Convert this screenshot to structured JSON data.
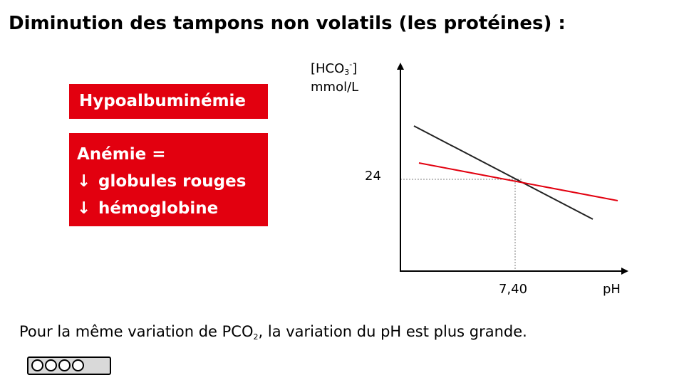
{
  "title": "Diminution des tampons non volatils (les protéines) :",
  "boxes": {
    "box1": "Hypoalbuminémie",
    "box2": {
      "line1": "Anémie =",
      "line2_arrow": "↓",
      "line2": "globules rouges",
      "line3_arrow": "↓",
      "line3": "hémoglobine"
    }
  },
  "chart": {
    "y_label_prefix": "[HCO",
    "y_label_sub": "3",
    "y_label_sup": "-",
    "y_label_suffix": "]",
    "y_unit": "mmol/L",
    "y_tick": "24",
    "x_tick": "7,40",
    "x_label": "pH",
    "colors": {
      "steep_line": "#222222",
      "shallow_line": "#e2000f",
      "axis": "#000000",
      "guide": "#7f7f7f"
    }
  },
  "caption": {
    "part1": "Pour la même variation de PCO",
    "sub": "2",
    "part2": ", la variation du pH est plus grande."
  },
  "license": {
    "icons": [
      "cc-icon",
      "by-icon",
      "nc-icon",
      "sa-icon"
    ]
  }
}
